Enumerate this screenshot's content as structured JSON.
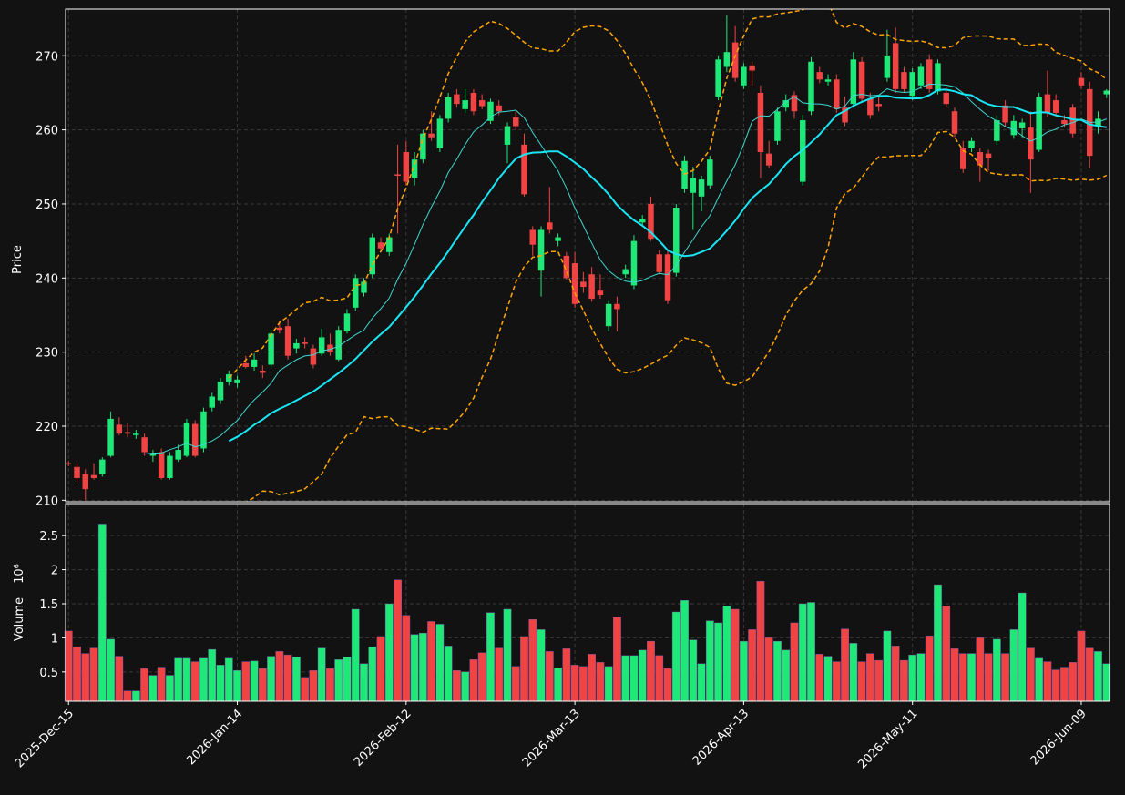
{
  "chart_data": {
    "type": "candlestick",
    "ylabel": "Price",
    "volume_ylabel": "Volume",
    "volume_offset": "10⁶",
    "up_color": "#1ee878",
    "down_color": "#f04444",
    "grid": true,
    "moving_averages": [
      {
        "window": 10,
        "color": "#3fd8d0",
        "width": 1
      },
      {
        "window": 20,
        "color": "#19e6f5",
        "width": 2
      }
    ],
    "bollinger": {
      "window": 20,
      "k": 2,
      "color": "#ffa500"
    },
    "xlim": [
      -0.35,
      123.35
    ],
    "xticks": [
      {
        "value": 0,
        "label": "2025-Dec-15"
      },
      {
        "value": 20,
        "label": "2026-Jan-14"
      },
      {
        "value": 40,
        "label": "2026-Feb-12"
      },
      {
        "value": 60,
        "label": "2026-Mar-13"
      },
      {
        "value": 80,
        "label": "2026-Apr-13"
      },
      {
        "value": 100,
        "label": "2026-May-11"
      },
      {
        "value": 120,
        "label": "2026-Jun-09"
      }
    ],
    "ylim": [
      209.8,
      276.3
    ],
    "yticks": [
      210,
      220,
      230,
      240,
      250,
      260,
      270
    ],
    "volume_ylim": [
      0.07,
      2.97
    ],
    "volume_yticks": [
      0.5,
      1.0,
      1.5,
      2.0,
      2.5
    ],
    "ohlc": [
      [
        215.0,
        215.3,
        214.6,
        214.9
      ],
      [
        214.5,
        215.0,
        212.5,
        213.0
      ],
      [
        213.5,
        214.2,
        210.0,
        211.5
      ],
      [
        213.4,
        215.0,
        212.8,
        213.0
      ],
      [
        213.5,
        215.8,
        213.2,
        215.5
      ],
      [
        216.0,
        222.0,
        215.8,
        221.0
      ],
      [
        220.2,
        221.2,
        218.8,
        219.0
      ],
      [
        219.2,
        220.5,
        218.5,
        219.0
      ],
      [
        218.8,
        219.5,
        218.3,
        219.0
      ],
      [
        218.5,
        219.0,
        216.0,
        216.5
      ],
      [
        216.0,
        216.8,
        215.2,
        216.3
      ],
      [
        216.5,
        217.0,
        212.8,
        213.0
      ],
      [
        213.0,
        216.5,
        212.8,
        216.0
      ],
      [
        215.5,
        217.5,
        215.2,
        216.8
      ],
      [
        216.0,
        221.0,
        215.8,
        220.5
      ],
      [
        220.3,
        220.8,
        215.8,
        216.0
      ],
      [
        217.0,
        222.5,
        216.5,
        222.0
      ],
      [
        222.5,
        224.5,
        222.0,
        224.0
      ],
      [
        223.5,
        226.5,
        223.0,
        226.0
      ],
      [
        226.0,
        227.5,
        225.5,
        227.0
      ],
      [
        225.8,
        226.8,
        225.2,
        226.3
      ],
      [
        228.5,
        229.5,
        227.8,
        228.0
      ],
      [
        228.0,
        229.8,
        227.5,
        229.0
      ],
      [
        227.5,
        228.2,
        226.5,
        227.2
      ],
      [
        228.3,
        233.0,
        228.0,
        232.5
      ],
      [
        233.3,
        234.2,
        232.5,
        233.0
      ],
      [
        233.5,
        234.5,
        229.0,
        229.5
      ],
      [
        230.5,
        231.8,
        229.8,
        231.2
      ],
      [
        231.3,
        232.0,
        230.5,
        231.1
      ],
      [
        230.5,
        231.0,
        227.8,
        228.3
      ],
      [
        229.8,
        233.2,
        229.5,
        232.0
      ],
      [
        231.0,
        232.5,
        229.5,
        230.0
      ],
      [
        229.0,
        233.5,
        228.8,
        233.0
      ],
      [
        232.8,
        235.8,
        232.5,
        235.2
      ],
      [
        236.0,
        240.5,
        235.5,
        240.0
      ],
      [
        238.0,
        240.0,
        237.5,
        239.5
      ],
      [
        240.5,
        246.0,
        240.0,
        245.5
      ],
      [
        244.8,
        245.5,
        243.5,
        244.0
      ],
      [
        243.5,
        246.0,
        243.0,
        245.5
      ],
      [
        254.0,
        258.0,
        246.0,
        253.8
      ],
      [
        257.0,
        258.5,
        252.5,
        253.0
      ],
      [
        253.5,
        257.0,
        252.5,
        256.0
      ],
      [
        256.0,
        260.0,
        255.5,
        259.5
      ],
      [
        259.5,
        262.5,
        258.5,
        259.0
      ],
      [
        257.5,
        262.0,
        257.0,
        261.5
      ],
      [
        261.5,
        265.0,
        261.0,
        264.5
      ],
      [
        264.8,
        265.5,
        263.0,
        263.5
      ],
      [
        262.8,
        265.5,
        262.3,
        264.0
      ],
      [
        265.0,
        265.5,
        262.0,
        262.5
      ],
      [
        264.0,
        264.8,
        262.8,
        263.2
      ],
      [
        261.2,
        264.2,
        260.8,
        263.8
      ],
      [
        263.3,
        264.0,
        262.0,
        262.5
      ],
      [
        258.0,
        261.0,
        255.5,
        260.5
      ],
      [
        261.7,
        262.5,
        260.0,
        260.5
      ],
      [
        258.0,
        259.5,
        251.0,
        251.3
      ],
      [
        246.5,
        247.0,
        243.0,
        244.5
      ],
      [
        241.0,
        247.0,
        237.5,
        246.5
      ],
      [
        247.5,
        252.3,
        246.0,
        246.5
      ],
      [
        245.0,
        246.0,
        244.3,
        245.5
      ],
      [
        243.0,
        243.5,
        239.8,
        240.0
      ],
      [
        242.0,
        243.5,
        236.0,
        236.5
      ],
      [
        239.5,
        240.8,
        238.0,
        238.8
      ],
      [
        240.5,
        241.5,
        236.8,
        237.2
      ],
      [
        238.3,
        240.5,
        237.2,
        237.7
      ],
      [
        233.5,
        237.0,
        232.8,
        236.5
      ],
      [
        236.5,
        237.5,
        232.8,
        235.8
      ],
      [
        240.5,
        241.8,
        240.0,
        241.2
      ],
      [
        239.0,
        245.8,
        238.5,
        245.0
      ],
      [
        247.5,
        248.5,
        247.0,
        248.0
      ],
      [
        250.0,
        251.0,
        245.0,
        245.3
      ],
      [
        243.2,
        243.8,
        240.5,
        240.8
      ],
      [
        243.2,
        243.8,
        236.5,
        237.0
      ],
      [
        240.7,
        250.0,
        240.2,
        249.5
      ],
      [
        252.0,
        256.5,
        251.5,
        255.8
      ],
      [
        251.5,
        255.0,
        246.5,
        253.5
      ],
      [
        251.0,
        253.8,
        249.0,
        253.3
      ],
      [
        252.5,
        256.5,
        252.0,
        256.0
      ],
      [
        264.5,
        270.0,
        264.0,
        269.5
      ],
      [
        268.5,
        275.5,
        267.8,
        270.5
      ],
      [
        271.8,
        274.0,
        266.5,
        267.0
      ],
      [
        266.0,
        269.0,
        265.5,
        268.5
      ],
      [
        268.7,
        269.2,
        266.0,
        268.0
      ],
      [
        265.0,
        266.0,
        253.5,
        257.0
      ],
      [
        256.8,
        258.5,
        254.8,
        255.2
      ],
      [
        258.5,
        263.0,
        258.0,
        262.5
      ],
      [
        263.0,
        264.8,
        262.5,
        264.0
      ],
      [
        264.7,
        265.2,
        261.5,
        262.5
      ],
      [
        253.0,
        262.0,
        252.5,
        261.3
      ],
      [
        262.5,
        269.8,
        262.0,
        269.2
      ],
      [
        267.8,
        268.5,
        266.3,
        266.8
      ],
      [
        266.5,
        267.5,
        266.0,
        266.8
      ],
      [
        266.8,
        267.5,
        262.3,
        262.8
      ],
      [
        263.0,
        264.5,
        260.5,
        261.0
      ],
      [
        263.5,
        270.5,
        263.0,
        269.5
      ],
      [
        269.2,
        269.8,
        263.8,
        264.2
      ],
      [
        264.2,
        265.0,
        261.5,
        262.0
      ],
      [
        263.5,
        264.5,
        262.5,
        263.2
      ],
      [
        267.0,
        273.5,
        266.5,
        270.0
      ],
      [
        271.7,
        273.8,
        265.0,
        265.5
      ],
      [
        267.8,
        268.5,
        265.0,
        265.5
      ],
      [
        264.6,
        268.3,
        264.0,
        267.8
      ],
      [
        266.0,
        269.0,
        265.5,
        268.5
      ],
      [
        269.5,
        270.2,
        265.0,
        265.5
      ],
      [
        265.2,
        269.5,
        264.8,
        269.0
      ],
      [
        265.0,
        265.8,
        263.0,
        263.5
      ],
      [
        262.5,
        263.0,
        259.0,
        259.5
      ],
      [
        257.5,
        258.5,
        254.2,
        254.7
      ],
      [
        257.5,
        259.0,
        257.0,
        258.5
      ],
      [
        257.0,
        257.5,
        253.0,
        255.2
      ],
      [
        256.8,
        257.3,
        254.5,
        256.2
      ],
      [
        258.5,
        262.0,
        258.0,
        261.3
      ],
      [
        263.3,
        264.0,
        260.5,
        261.0
      ],
      [
        259.3,
        262.0,
        258.8,
        261.2
      ],
      [
        260.2,
        261.5,
        259.0,
        261.0
      ],
      [
        260.3,
        262.5,
        251.5,
        256.0
      ],
      [
        257.3,
        265.0,
        257.0,
        264.5
      ],
      [
        264.8,
        268.0,
        261.8,
        262.3
      ],
      [
        264.0,
        264.8,
        261.8,
        262.3
      ],
      [
        261.3,
        262.0,
        260.3,
        260.8
      ],
      [
        263.0,
        263.5,
        259.0,
        259.5
      ],
      [
        267.0,
        267.8,
        265.5,
        266.0
      ],
      [
        265.5,
        266.5,
        254.8,
        256.5
      ],
      [
        260.5,
        262.5,
        259.5,
        261.5
      ],
      [
        264.8,
        265.5,
        264.3,
        265.3
      ]
    ],
    "volume": [
      1.1,
      0.87,
      0.77,
      0.85,
      2.67,
      0.98,
      0.73,
      0.22,
      0.22,
      0.55,
      0.45,
      0.57,
      0.45,
      0.7,
      0.7,
      0.65,
      0.7,
      0.83,
      0.6,
      0.7,
      0.52,
      0.65,
      0.66,
      0.55,
      0.73,
      0.8,
      0.75,
      0.72,
      0.42,
      0.52,
      0.85,
      0.55,
      0.68,
      0.72,
      1.42,
      0.62,
      0.87,
      1.02,
      1.5,
      1.85,
      1.33,
      1.05,
      1.07,
      1.24,
      1.2,
      0.88,
      0.52,
      0.5,
      0.68,
      0.78,
      1.37,
      0.85,
      1.42,
      0.58,
      1.02,
      1.27,
      1.12,
      0.8,
      0.56,
      0.84,
      0.6,
      0.58,
      0.76,
      0.64,
      0.58,
      1.3,
      0.74,
      0.74,
      0.82,
      0.95,
      0.74,
      0.55,
      1.38,
      1.55,
      0.97,
      0.62,
      1.25,
      1.22,
      1.47,
      1.42,
      0.95,
      1.12,
      1.83,
      1.0,
      0.95,
      0.82,
      1.22,
      1.5,
      1.52,
      0.76,
      0.73,
      0.65,
      1.13,
      0.92,
      0.65,
      0.77,
      0.67,
      1.1,
      0.88,
      0.67,
      0.75,
      0.77,
      1.03,
      1.78,
      1.47,
      0.84,
      0.77,
      0.77,
      1.0,
      0.77,
      0.98,
      0.77,
      1.12,
      1.66,
      0.85,
      0.7,
      0.65,
      0.53,
      0.57,
      0.64,
      1.1,
      0.85,
      0.8,
      0.62
    ]
  }
}
